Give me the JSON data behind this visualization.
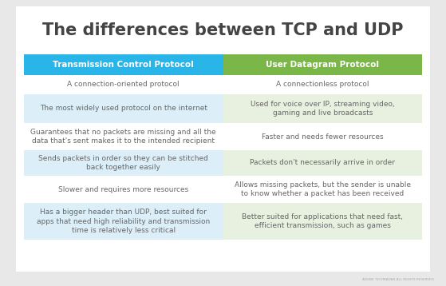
{
  "title": "The differences between TCP and UDP",
  "title_fontsize": 15,
  "title_color": "#444444",
  "background_color": "#e8e8e8",
  "table_bg": "#ffffff",
  "tcp_header": "Transmission Control Protocol",
  "udp_header": "User Datagram Protocol",
  "tcp_header_color": "#29b5e8",
  "udp_header_color": "#7ab648",
  "header_text_color": "#ffffff",
  "row_bg_even": "#ffffff",
  "row_bg_odd_tcp": "#dceef8",
  "row_bg_odd_udp": "#e8f0e0",
  "text_color": "#666666",
  "rows": [
    [
      "A connection-oriented protocol",
      "A connectionless protocol"
    ],
    [
      "The most widely used protocol on the internet",
      "Used for voice over IP, streaming video,\ngaming and live broadcasts"
    ],
    [
      "Guarantees that no packets are missing and all the\ndata that's sent makes it to the intended recipient",
      "Faster and needs fewer resources"
    ],
    [
      "Sends packets in order so they can be stitched\nback together easily",
      "Packets don't necessarily arrive in order"
    ],
    [
      "Slower and requires more resources",
      "Allows missing packets, but the sender is unable\nto know whether a packet has been received"
    ],
    [
      "Has a bigger header than UDP, best suited for\napps that need high reliability and transmission\ntime is relatively less critical",
      "Better suited for applications that need fast,\nefficient transmission, such as games"
    ]
  ],
  "footer_text": "ADOBE TECHRADAR ALL RIGHTS RESERVED",
  "font_size": 6.5
}
